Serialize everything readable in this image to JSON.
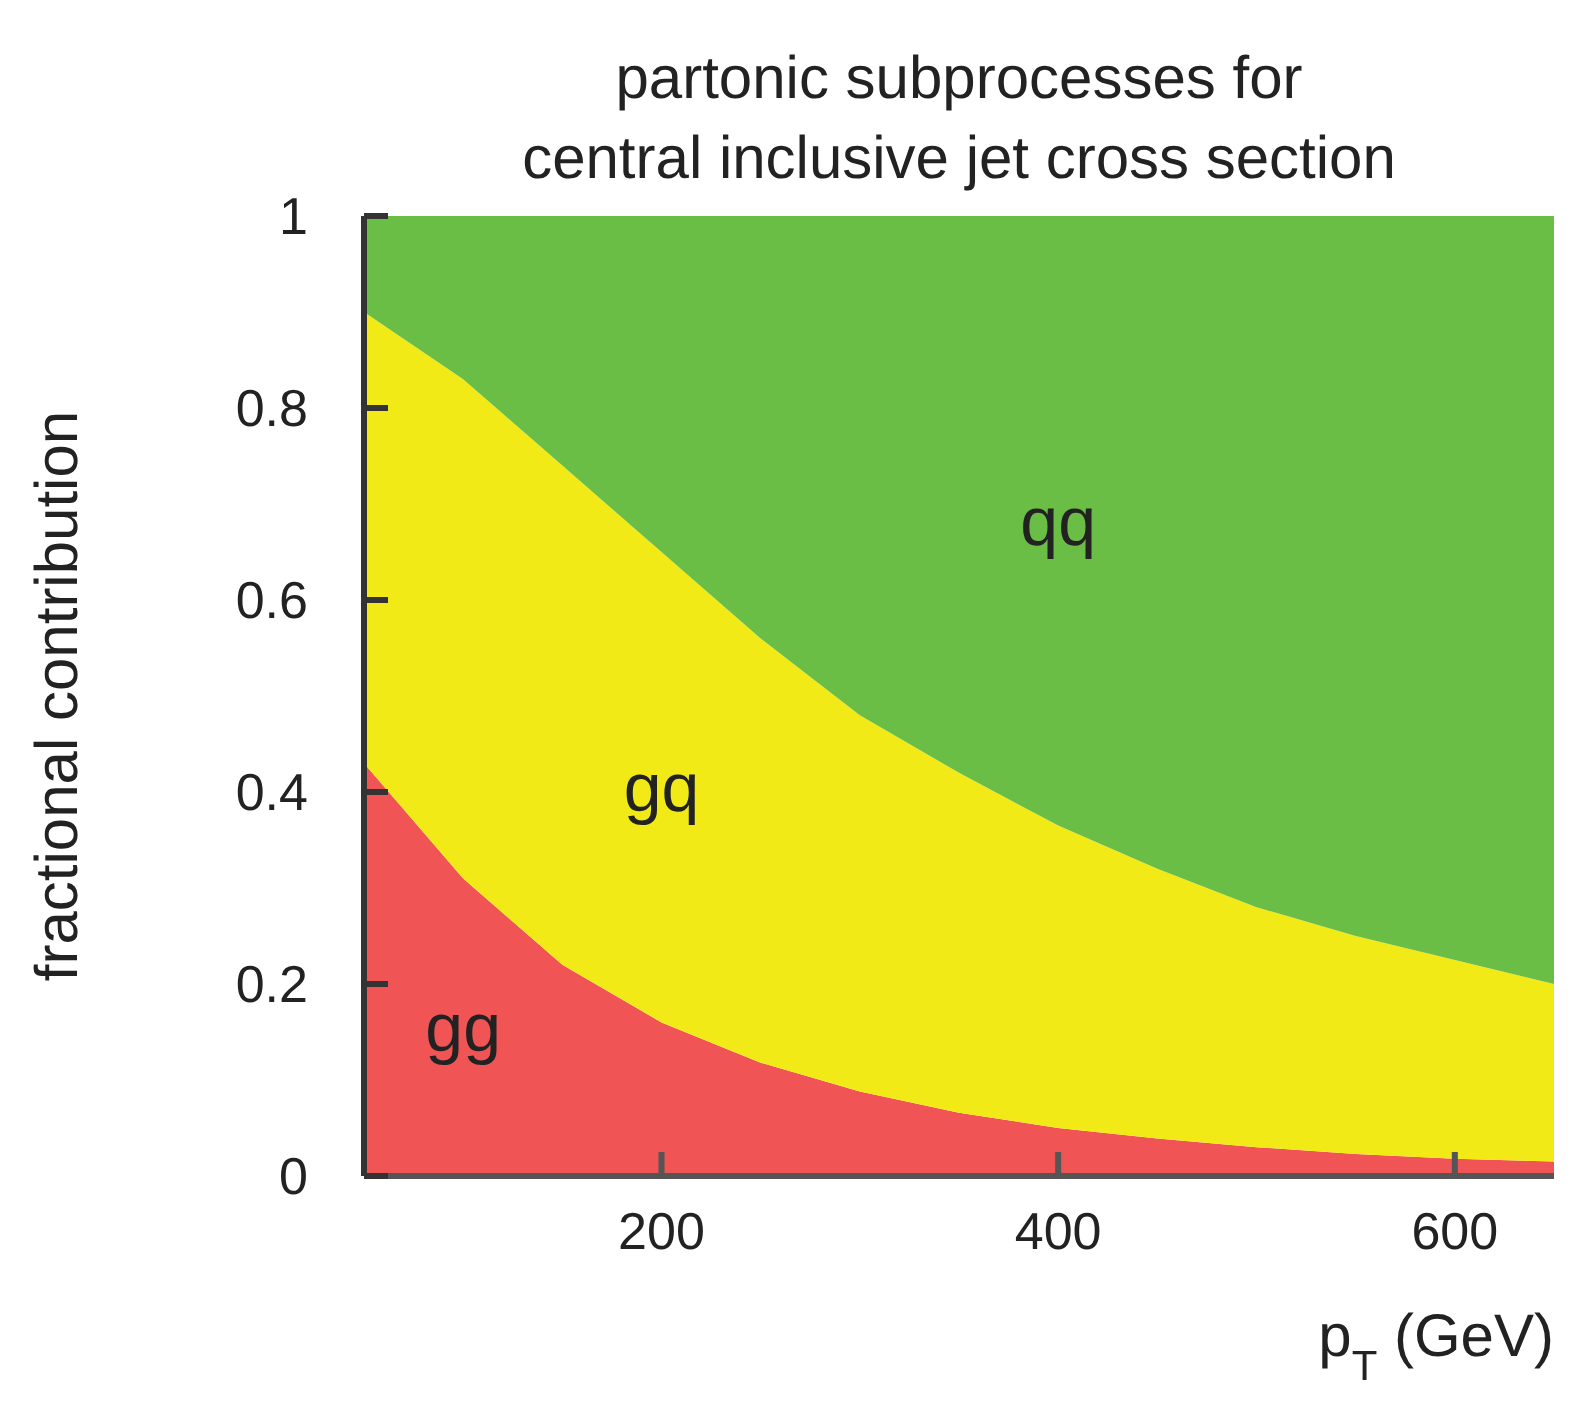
{
  "chart_data": {
    "type": "area",
    "stacked": true,
    "title": "partonic subprocesses for\ncentral inclusive jet cross section",
    "xlabel": "p$_{T}$ (GeV)",
    "ylabel": "fractional contribution",
    "x": [
      50,
      100,
      150,
      200,
      250,
      300,
      350,
      400,
      450,
      500,
      550,
      600,
      650
    ],
    "series": [
      {
        "name": "gg",
        "color": "#f05454",
        "values": [
          0.43,
          0.31,
          0.22,
          0.16,
          0.118,
          0.088,
          0.066,
          0.05,
          0.039,
          0.03,
          0.023,
          0.018,
          0.015
        ]
      },
      {
        "name": "gq",
        "color": "#f2ea17",
        "values": [
          0.47,
          0.52,
          0.52,
          0.49,
          0.442,
          0.392,
          0.354,
          0.315,
          0.281,
          0.25,
          0.227,
          0.207,
          0.185
        ]
      },
      {
        "name": "qq",
        "color": "#6abd45",
        "values": [
          0.1,
          0.17,
          0.26,
          0.35,
          0.44,
          0.52,
          0.58,
          0.635,
          0.68,
          0.72,
          0.75,
          0.775,
          0.8
        ]
      }
    ],
    "xlim": [
      50,
      650
    ],
    "xticks": [
      200,
      400,
      600
    ],
    "ylim": [
      0,
      1
    ],
    "yticks": [
      0,
      0.2,
      0.4,
      0.6,
      0.8,
      1
    ]
  }
}
